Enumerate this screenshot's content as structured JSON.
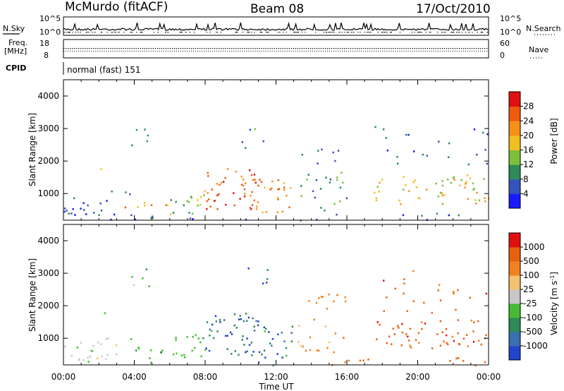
{
  "header": {
    "station": "McMurdo (fitACF)",
    "beam": "Beam 08",
    "date": "17/Oct/2010"
  },
  "strip1": {
    "left_label": "N.Sky",
    "right_label": "N.Search",
    "left_ticks": [
      "10^5",
      "10^0"
    ],
    "right_ticks": [
      "10^5",
      "10^0"
    ]
  },
  "strip2": {
    "left_label_1": "Freq.",
    "left_label_2": "[MHz]",
    "right_label": "Nave",
    "left_ticks": [
      "18",
      "8"
    ],
    "right_ticks": [
      "60",
      "0"
    ]
  },
  "cpid": {
    "label": "CPID",
    "value": "normal (fast) 151"
  },
  "chart_data": [
    {
      "type": "heatmap",
      "title": "",
      "ylabel": "Slant Range [km]",
      "xlabel": "",
      "x_ticks": [
        "00:00",
        "04:00",
        "08:00",
        "12:00",
        "16:00",
        "20:00",
        "00:00"
      ],
      "y_ticks": [
        1000,
        2000,
        3000,
        4000
      ],
      "ylim": [
        180,
        4500
      ],
      "xlim_hours": [
        0,
        24
      ],
      "colorbar": {
        "label": "Power [dB]",
        "ticks": [
          "4",
          "8",
          "12",
          "16",
          "20",
          "24",
          "28"
        ],
        "colors": [
          "#1a1aff",
          "#3355bb",
          "#2e8b57",
          "#7cbf3a",
          "#f0c020",
          "#f59018",
          "#f05a10",
          "#e01010"
        ]
      }
    },
    {
      "type": "heatmap",
      "title": "",
      "ylabel": "Slant Range [km]",
      "xlabel": "Time UT",
      "x_ticks": [
        "00:00",
        "04:00",
        "08:00",
        "12:00",
        "16:00",
        "20:00",
        "00:00"
      ],
      "y_ticks": [
        1000,
        2000,
        3000,
        4000
      ],
      "ylim": [
        180,
        4500
      ],
      "xlim_hours": [
        0,
        24
      ],
      "colorbar": {
        "label_main": "Velocity [m s",
        "label_sup": "-1",
        "label_end": "]",
        "ticks": [
          "1000",
          "500",
          "100",
          "25",
          "-25",
          "-100",
          "-500",
          "-1000"
        ],
        "colors": [
          "#2244cc",
          "#3a6fb0",
          "#2e8b57",
          "#44bb33",
          "#c8c8c8",
          "#f5c070",
          "#f08020",
          "#e86010",
          "#e01010"
        ]
      }
    }
  ]
}
